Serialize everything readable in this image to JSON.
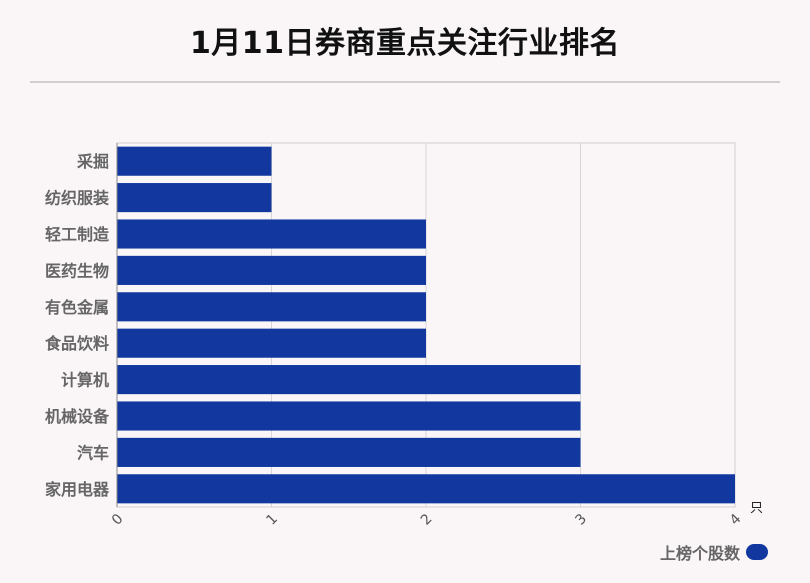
{
  "chart_data": {
    "type": "bar",
    "orientation": "horizontal",
    "title": "1月11日券商重点关注行业排名",
    "categories": [
      "采掘",
      "纺织服装",
      "轻工制造",
      "医药生物",
      "有色金属",
      "食品饮料",
      "计算机",
      "机械设备",
      "汽车",
      "家用电器"
    ],
    "series": [
      {
        "name": "上榜个股数",
        "values": [
          1,
          1,
          2,
          2,
          2,
          2,
          3,
          3,
          3,
          4
        ]
      }
    ],
    "xticks": [
      "0",
      "1",
      "2",
      "3",
      "4"
    ],
    "xlim": [
      0,
      4
    ],
    "unit": "只",
    "grid": true,
    "legend": "bottom-right",
    "color": "#1238a0"
  }
}
